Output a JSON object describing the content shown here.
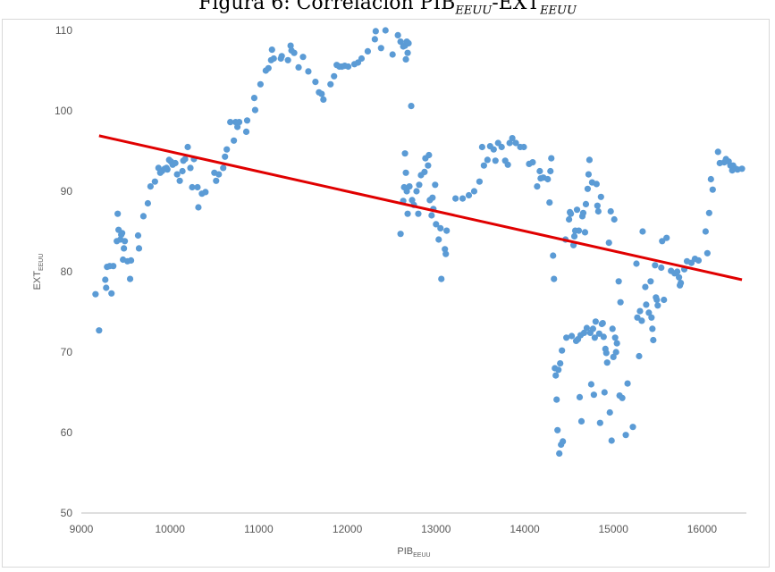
{
  "chart_data": {
    "type": "scatter",
    "title": "Figura 6: Correlación PIB",
    "title_sub_1": "EEUU",
    "title_mid": "-EXT",
    "title_sub_2": "EEUU",
    "xlabel": "PIB",
    "xlabel_sub": "EEUU",
    "ylabel": "EXT",
    "ylabel_sub": "EEUU",
    "xlim": [
      9000,
      16500
    ],
    "ylim": [
      50,
      110
    ],
    "xticks": [
      9000,
      10000,
      11000,
      12000,
      13000,
      14000,
      15000,
      16000
    ],
    "yticks": [
      50,
      60,
      70,
      80,
      90,
      100,
      110
    ],
    "grid": false,
    "legend": "none",
    "point_color": "#5b9bd5",
    "trendline": {
      "color": "#e00000",
      "x": [
        9200,
        16450
      ],
      "y": [
        96.9,
        79.0
      ]
    },
    "points": [
      [
        9160,
        77.2
      ],
      [
        9200,
        72.7
      ],
      [
        9270,
        79.0
      ],
      [
        9280,
        78.0
      ],
      [
        9290,
        80.6
      ],
      [
        9320,
        80.7
      ],
      [
        9340,
        77.3
      ],
      [
        9360,
        80.7
      ],
      [
        9400,
        83.8
      ],
      [
        9410,
        87.2
      ],
      [
        9420,
        85.2
      ],
      [
        9440,
        84.0
      ],
      [
        9450,
        84.6
      ],
      [
        9460,
        84.8
      ],
      [
        9470,
        81.5
      ],
      [
        9480,
        82.9
      ],
      [
        9490,
        83.8
      ],
      [
        9520,
        81.3
      ],
      [
        9550,
        79.1
      ],
      [
        9560,
        81.4
      ],
      [
        9640,
        84.5
      ],
      [
        9650,
        82.9
      ],
      [
        9700,
        86.9
      ],
      [
        9750,
        88.5
      ],
      [
        9780,
        90.6
      ],
      [
        9830,
        91.2
      ],
      [
        9870,
        92.9
      ],
      [
        9890,
        92.3
      ],
      [
        9910,
        92.5
      ],
      [
        9940,
        92.8
      ],
      [
        9960,
        92.9
      ],
      [
        9970,
        92.7
      ],
      [
        9990,
        93.9
      ],
      [
        10010,
        93.7
      ],
      [
        10030,
        93.3
      ],
      [
        10060,
        93.5
      ],
      [
        10080,
        92.1
      ],
      [
        10110,
        91.3
      ],
      [
        10140,
        92.5
      ],
      [
        10150,
        93.8
      ],
      [
        10170,
        94.0
      ],
      [
        10200,
        95.5
      ],
      [
        10230,
        92.9
      ],
      [
        10250,
        90.5
      ],
      [
        10270,
        94.0
      ],
      [
        10310,
        90.5
      ],
      [
        10320,
        88.0
      ],
      [
        10360,
        89.7
      ],
      [
        10400,
        89.9
      ],
      [
        10500,
        92.3
      ],
      [
        10520,
        91.3
      ],
      [
        10550,
        92.1
      ],
      [
        10600,
        92.9
      ],
      [
        10620,
        94.3
      ],
      [
        10640,
        95.2
      ],
      [
        10680,
        98.6
      ],
      [
        10720,
        96.3
      ],
      [
        10740,
        98.6
      ],
      [
        10760,
        98.0
      ],
      [
        10780,
        98.6
      ],
      [
        10860,
        97.4
      ],
      [
        10870,
        98.8
      ],
      [
        10950,
        101.6
      ],
      [
        10960,
        100.1
      ],
      [
        11020,
        103.3
      ],
      [
        11080,
        105.0
      ],
      [
        11110,
        105.3
      ],
      [
        11140,
        106.3
      ],
      [
        11150,
        107.6
      ],
      [
        11170,
        106.5
      ],
      [
        11250,
        106.5
      ],
      [
        11260,
        106.8
      ],
      [
        11330,
        106.3
      ],
      [
        11360,
        108.1
      ],
      [
        11370,
        107.5
      ],
      [
        11400,
        107.2
      ],
      [
        11450,
        105.4
      ],
      [
        11500,
        106.7
      ],
      [
        11560,
        104.9
      ],
      [
        11640,
        103.6
      ],
      [
        11680,
        102.3
      ],
      [
        11710,
        102.1
      ],
      [
        11730,
        101.4
      ],
      [
        11810,
        103.3
      ],
      [
        11850,
        104.3
      ],
      [
        11880,
        105.7
      ],
      [
        11910,
        105.5
      ],
      [
        11940,
        105.5
      ],
      [
        11970,
        105.6
      ],
      [
        12010,
        105.5
      ],
      [
        12080,
        105.8
      ],
      [
        12120,
        106.0
      ],
      [
        12160,
        106.5
      ],
      [
        12230,
        107.4
      ],
      [
        12310,
        108.9
      ],
      [
        12320,
        109.9
      ],
      [
        12380,
        107.8
      ],
      [
        12430,
        110.0
      ],
      [
        12510,
        107.0
      ],
      [
        12570,
        109.4
      ],
      [
        12600,
        108.6
      ],
      [
        12630,
        108.0
      ],
      [
        12650,
        108.1
      ],
      [
        12660,
        106.4
      ],
      [
        12670,
        108.6
      ],
      [
        12680,
        107.2
      ],
      [
        12690,
        108.4
      ],
      [
        12720,
        100.6
      ],
      [
        12600,
        84.7
      ],
      [
        12630,
        88.8
      ],
      [
        12640,
        90.5
      ],
      [
        12650,
        94.7
      ],
      [
        12660,
        92.3
      ],
      [
        12670,
        90.0
      ],
      [
        12680,
        87.2
      ],
      [
        12700,
        90.6
      ],
      [
        12730,
        88.9
      ],
      [
        12750,
        88.3
      ],
      [
        12780,
        90.0
      ],
      [
        12810,
        90.8
      ],
      [
        12800,
        87.2
      ],
      [
        12830,
        92.0
      ],
      [
        12870,
        92.4
      ],
      [
        12880,
        94.1
      ],
      [
        12910,
        93.2
      ],
      [
        12920,
        94.5
      ],
      [
        12930,
        88.9
      ],
      [
        12950,
        87.0
      ],
      [
        12960,
        89.2
      ],
      [
        12970,
        87.8
      ],
      [
        12990,
        90.8
      ],
      [
        13000,
        85.9
      ],
      [
        13030,
        84.0
      ],
      [
        13050,
        85.4
      ],
      [
        13060,
        79.1
      ],
      [
        13100,
        82.8
      ],
      [
        13110,
        82.2
      ],
      [
        13120,
        85.1
      ],
      [
        13220,
        89.1
      ],
      [
        13300,
        89.1
      ],
      [
        13370,
        89.5
      ],
      [
        13430,
        90.0
      ],
      [
        13490,
        91.2
      ],
      [
        13520,
        95.5
      ],
      [
        13540,
        93.2
      ],
      [
        13580,
        93.9
      ],
      [
        13610,
        95.6
      ],
      [
        13650,
        95.2
      ],
      [
        13670,
        93.8
      ],
      [
        13700,
        96.0
      ],
      [
        13740,
        95.5
      ],
      [
        13780,
        93.8
      ],
      [
        13810,
        93.3
      ],
      [
        13830,
        96.0
      ],
      [
        13860,
        96.6
      ],
      [
        13900,
        96.0
      ],
      [
        13950,
        95.5
      ],
      [
        13990,
        95.5
      ],
      [
        14050,
        93.4
      ],
      [
        14090,
        93.6
      ],
      [
        14140,
        90.6
      ],
      [
        14170,
        92.5
      ],
      [
        14180,
        91.6
      ],
      [
        14210,
        91.7
      ],
      [
        14260,
        91.5
      ],
      [
        14280,
        88.6
      ],
      [
        14290,
        92.5
      ],
      [
        14300,
        94.1
      ],
      [
        14320,
        82.0
      ],
      [
        14330,
        79.1
      ],
      [
        14340,
        68.0
      ],
      [
        14350,
        67.1
      ],
      [
        14360,
        64.1
      ],
      [
        14370,
        60.3
      ],
      [
        14380,
        67.8
      ],
      [
        14390,
        57.4
      ],
      [
        14400,
        68.6
      ],
      [
        14410,
        58.5
      ],
      [
        14420,
        70.2
      ],
      [
        14430,
        58.9
      ],
      [
        14460,
        84.0
      ],
      [
        14470,
        71.8
      ],
      [
        14500,
        86.5
      ],
      [
        14510,
        87.4
      ],
      [
        14520,
        87.2
      ],
      [
        14530,
        72.0
      ],
      [
        14550,
        83.3
      ],
      [
        14560,
        84.4
      ],
      [
        14570,
        85.1
      ],
      [
        14580,
        71.4
      ],
      [
        14590,
        87.7
      ],
      [
        14600,
        71.6
      ],
      [
        14610,
        85.1
      ],
      [
        14620,
        64.4
      ],
      [
        14630,
        72.1
      ],
      [
        14640,
        61.4
      ],
      [
        14650,
        86.9
      ],
      [
        14660,
        87.3
      ],
      [
        14670,
        72.4
      ],
      [
        14680,
        84.9
      ],
      [
        14690,
        88.4
      ],
      [
        14700,
        73.0
      ],
      [
        14710,
        90.3
      ],
      [
        14720,
        92.1
      ],
      [
        14730,
        93.9
      ],
      [
        14740,
        72.4
      ],
      [
        14750,
        66.0
      ],
      [
        14760,
        91.1
      ],
      [
        14770,
        72.9
      ],
      [
        14780,
        64.7
      ],
      [
        14790,
        71.8
      ],
      [
        14800,
        73.8
      ],
      [
        14810,
        90.9
      ],
      [
        14820,
        88.2
      ],
      [
        14830,
        87.5
      ],
      [
        14840,
        72.3
      ],
      [
        14850,
        61.2
      ],
      [
        14860,
        89.3
      ],
      [
        14870,
        73.5
      ],
      [
        14880,
        73.6
      ],
      [
        14890,
        71.9
      ],
      [
        14900,
        65.0
      ],
      [
        14910,
        70.4
      ],
      [
        14920,
        69.9
      ],
      [
        14930,
        68.7
      ],
      [
        14950,
        83.6
      ],
      [
        14960,
        62.5
      ],
      [
        14970,
        87.5
      ],
      [
        14980,
        59.0
      ],
      [
        14990,
        72.9
      ],
      [
        15000,
        69.4
      ],
      [
        15010,
        86.5
      ],
      [
        15020,
        71.8
      ],
      [
        15030,
        70.0
      ],
      [
        15040,
        71.1
      ],
      [
        15060,
        78.8
      ],
      [
        15070,
        64.6
      ],
      [
        15080,
        76.2
      ],
      [
        15100,
        64.3
      ],
      [
        15140,
        59.7
      ],
      [
        15160,
        66.1
      ],
      [
        15220,
        60.7
      ],
      [
        15260,
        81.0
      ],
      [
        15270,
        74.3
      ],
      [
        15290,
        69.5
      ],
      [
        15300,
        75.1
      ],
      [
        15320,
        73.9
      ],
      [
        15330,
        85.0
      ],
      [
        15360,
        78.1
      ],
      [
        15370,
        75.9
      ],
      [
        15400,
        74.9
      ],
      [
        15420,
        78.8
      ],
      [
        15430,
        74.3
      ],
      [
        15440,
        72.9
      ],
      [
        15450,
        71.5
      ],
      [
        15470,
        80.8
      ],
      [
        15480,
        76.8
      ],
      [
        15490,
        76.5
      ],
      [
        15500,
        75.8
      ],
      [
        15540,
        80.5
      ],
      [
        15550,
        83.8
      ],
      [
        15570,
        76.5
      ],
      [
        15600,
        84.2
      ],
      [
        15650,
        80.1
      ],
      [
        15690,
        79.8
      ],
      [
        15720,
        80.0
      ],
      [
        15740,
        79.3
      ],
      [
        15750,
        78.3
      ],
      [
        15760,
        78.6
      ],
      [
        15800,
        80.3
      ],
      [
        15830,
        81.3
      ],
      [
        15880,
        81.1
      ],
      [
        15920,
        81.6
      ],
      [
        15960,
        81.4
      ],
      [
        16040,
        85.0
      ],
      [
        16060,
        82.3
      ],
      [
        16080,
        87.3
      ],
      [
        16100,
        91.5
      ],
      [
        16120,
        90.2
      ],
      [
        16180,
        94.9
      ],
      [
        16200,
        93.5
      ],
      [
        16250,
        93.6
      ],
      [
        16270,
        94.0
      ],
      [
        16300,
        93.7
      ],
      [
        16320,
        93.2
      ],
      [
        16340,
        92.6
      ],
      [
        16350,
        93.2
      ],
      [
        16380,
        92.8
      ],
      [
        16400,
        92.7
      ],
      [
        16450,
        92.8
      ]
    ]
  }
}
